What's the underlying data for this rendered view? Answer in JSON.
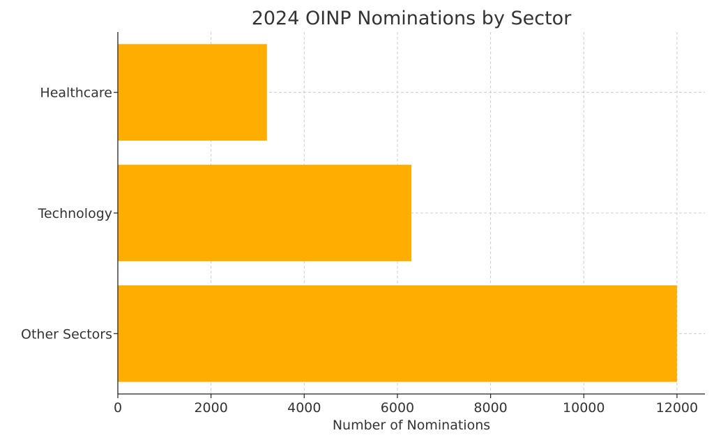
{
  "chart_data": {
    "type": "bar",
    "orientation": "horizontal",
    "title": "2024 OINP Nominations by Sector",
    "xlabel": "Number of Nominations",
    "ylabel": "",
    "categories": [
      "Healthcare",
      "Technology",
      "Other Sectors"
    ],
    "values": [
      3200,
      6300,
      12000
    ],
    "xlim": [
      0,
      12600
    ],
    "xticks": [
      0,
      2000,
      4000,
      6000,
      8000,
      10000,
      12000
    ],
    "xtick_labels": [
      "0",
      "2000",
      "4000",
      "6000",
      "8000",
      "10000",
      "12000"
    ],
    "grid": true,
    "legend": "none",
    "bar_color": "#ffae00"
  }
}
